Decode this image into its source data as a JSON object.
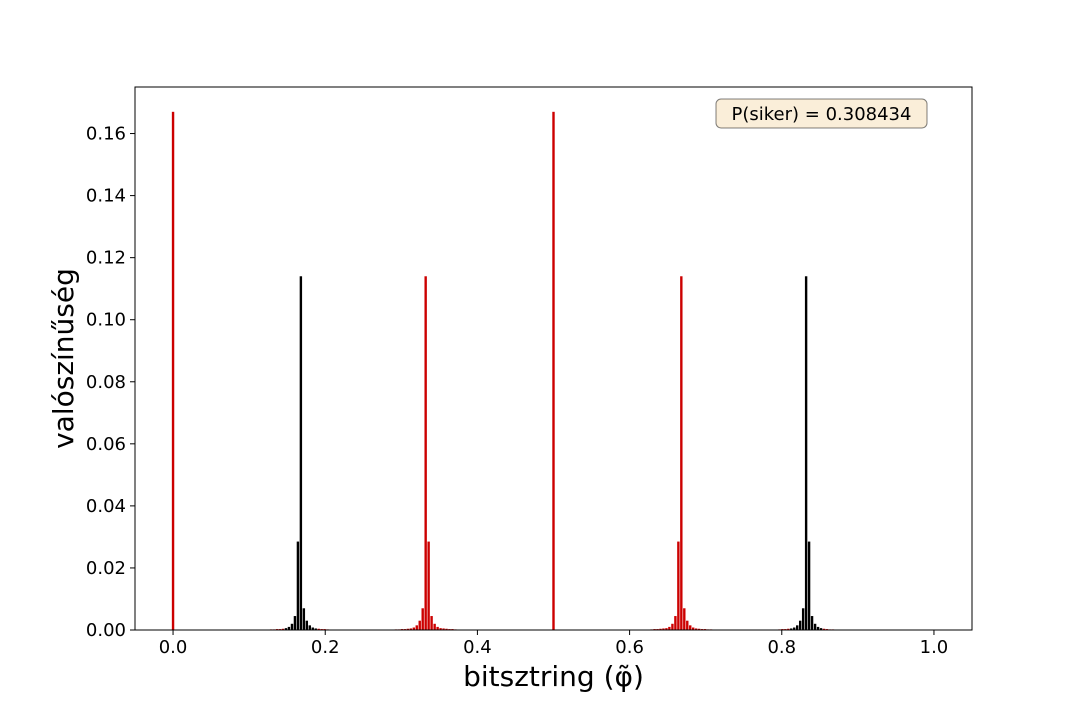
{
  "chart_data": {
    "type": "bar",
    "xlabel": "bitsztring (φ̃)",
    "ylabel": "valószínűség",
    "xlim": [
      -0.05,
      1.05
    ],
    "ylim": [
      0,
      0.175
    ],
    "xticks": [
      0.0,
      0.2,
      0.4,
      0.6,
      0.8,
      1.0
    ],
    "xtick_labels": [
      "0.0",
      "0.2",
      "0.4",
      "0.6",
      "0.8",
      "1.0"
    ],
    "yticks": [
      0.0,
      0.02,
      0.04,
      0.06,
      0.08,
      0.1,
      0.12,
      0.14,
      0.16
    ],
    "ytick_labels": [
      "0.00",
      "0.02",
      "0.04",
      "0.06",
      "0.08",
      "0.10",
      "0.12",
      "0.14",
      "0.16"
    ],
    "grid": false,
    "annotation": "P(siker) = 0.308434",
    "colors": {
      "success": "#cc0000",
      "failure": "#000000"
    },
    "series": [
      {
        "color": "#cc0000",
        "x": [
          0.0,
          0.5,
          0.3125,
          0.3164,
          0.3203,
          0.3242,
          0.3281,
          0.332,
          0.3359,
          0.3398,
          0.3438,
          0.3477,
          0.3516,
          0.6484,
          0.6523,
          0.6563,
          0.6602,
          0.6641,
          0.668,
          0.6719,
          0.6758,
          0.6797,
          0.6836,
          0.6875
        ],
        "values": [
          0.167,
          0.167,
          0.0005,
          0.0008,
          0.0015,
          0.003,
          0.007,
          0.114,
          0.0285,
          0.0045,
          0.002,
          0.001,
          0.0006,
          0.0006,
          0.001,
          0.002,
          0.0045,
          0.0285,
          0.114,
          0.007,
          0.003,
          0.0015,
          0.0008,
          0.0005
        ]
      },
      {
        "color": "#000000",
        "x": [
          0.1484,
          0.1523,
          0.1563,
          0.1602,
          0.1641,
          0.168,
          0.1719,
          0.1758,
          0.1797,
          0.1836,
          0.1875,
          0.8125,
          0.8164,
          0.8203,
          0.8242,
          0.8281,
          0.832,
          0.8359,
          0.8398,
          0.8438,
          0.8477,
          0.8516
        ],
        "values": [
          0.0006,
          0.001,
          0.002,
          0.0045,
          0.0285,
          0.114,
          0.007,
          0.003,
          0.0015,
          0.0008,
          0.0005,
          0.0005,
          0.0008,
          0.0015,
          0.003,
          0.007,
          0.114,
          0.0285,
          0.0045,
          0.002,
          0.001,
          0.0006
        ]
      },
      {
        "color": "#cc0000",
        "x": [
          0.1289,
          0.1328,
          0.1367,
          0.1406,
          0.1445,
          0.1914,
          0.1953,
          0.1992,
          0.2031,
          0.293,
          0.2969,
          0.3008,
          0.3047,
          0.3086,
          0.3555,
          0.3594,
          0.3633,
          0.3672,
          0.3711,
          0.6289,
          0.6328,
          0.6367,
          0.6406,
          0.6445,
          0.6914,
          0.6953,
          0.6992,
          0.7031,
          0.707,
          0.7969,
          0.8008,
          0.8047,
          0.8086,
          0.8555,
          0.8594,
          0.8633,
          0.8672
        ],
        "values": [
          0.0002,
          0.0002,
          0.0003,
          0.0003,
          0.0004,
          0.0004,
          0.0003,
          0.0003,
          0.0002,
          0.0002,
          0.0002,
          0.0003,
          0.0003,
          0.0004,
          0.0005,
          0.0004,
          0.0003,
          0.0003,
          0.0002,
          0.0002,
          0.0003,
          0.0003,
          0.0004,
          0.0005,
          0.0004,
          0.0003,
          0.0003,
          0.0002,
          0.0002,
          0.0002,
          0.0003,
          0.0003,
          0.0004,
          0.0004,
          0.0003,
          0.0002,
          0.0002
        ]
      }
    ]
  }
}
